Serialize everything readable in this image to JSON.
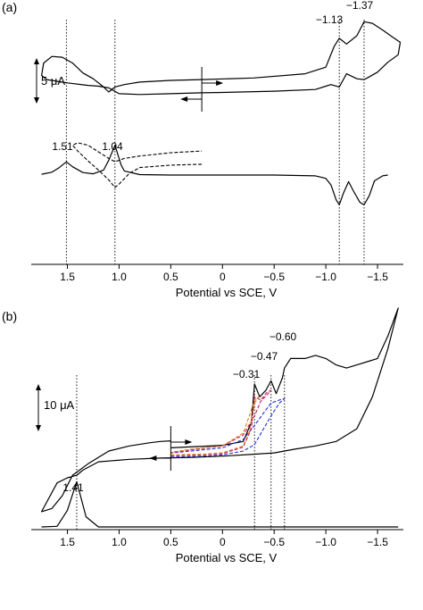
{
  "chart_data": [
    {
      "type": "line",
      "panel_label": "(a)",
      "xlabel": "Potential vs SCE, V",
      "xlim": [
        1.85,
        -1.75
      ],
      "x_reversed": true,
      "xticks": [
        1.5,
        1.0,
        0.5,
        0,
        -0.5,
        -1.0,
        -1.5
      ],
      "xtick_labels": [
        "1.5",
        "1.0",
        "0.5",
        "0",
        "−0.5",
        "−1.0",
        "−1.5"
      ],
      "scale_bar": {
        "label": "5 μA"
      },
      "marked_potentials": [
        1.51,
        1.04,
        -1.13,
        -1.37
      ],
      "annotations": [
        {
          "text": "1.51",
          "x": 1.51
        },
        {
          "text": "1.04",
          "x": 1.04
        },
        {
          "text": "−1.13",
          "x": -1.13
        },
        {
          "text": "−1.37",
          "x": -1.37
        }
      ],
      "series": [
        {
          "style": "solid",
          "trace": "cyclic voltammogram, wide scan",
          "x": [
            0.2,
            0.5,
            0.8,
            1.0,
            1.1,
            1.2,
            1.3,
            1.5,
            1.6,
            1.7,
            1.75,
            1.73,
            1.65,
            1.55,
            1.45,
            1.35,
            1.25,
            1.15,
            1.1,
            1.04,
            0.95,
            0.8,
            0.5,
            0.2,
            -0.3,
            -0.8,
            -1.0,
            -1.08,
            -1.13,
            -1.2,
            -1.3,
            -1.37,
            -1.45,
            -1.55,
            -1.65,
            -1.72,
            -1.7,
            -1.6,
            -1.5,
            -1.4,
            -1.37,
            -1.3,
            -1.2,
            -1.13,
            -1.05,
            -1.0,
            -0.9,
            -0.5,
            0.0,
            0.2
          ],
          "y": [
            -0.1,
            -0.2,
            -0.3,
            -0.2,
            0.5,
            0.7,
            0.8,
            1.1,
            1.3,
            1.5,
            2.0,
            3.5,
            4.3,
            4.2,
            3.5,
            2.3,
            1.6,
            0.6,
            0.0,
            0.6,
            0.9,
            1.2,
            1.4,
            1.5,
            1.7,
            2.2,
            3.0,
            5.5,
            6.5,
            5.8,
            6.8,
            8.5,
            8.3,
            7.5,
            6.6,
            6.0,
            4.5,
            3.6,
            2.4,
            1.7,
            1.5,
            1.6,
            2.2,
            0.6,
            0.9,
            0.7,
            0.3,
            0.1,
            -0.05,
            -0.1
          ]
        },
        {
          "style": "dashed",
          "trace": "cyclic voltammogram, first oxidation only",
          "x": [
            0.2,
            0.5,
            0.8,
            0.9,
            1.0,
            1.04,
            1.1,
            1.2,
            1.3,
            1.4,
            1.45,
            1.4,
            1.3,
            1.2,
            1.1,
            1.04,
            0.95,
            0.8,
            0.5,
            0.2
          ],
          "y": [
            -0.1,
            -0.2,
            -0.5,
            -1.2,
            -2.5,
            -2.9,
            -2.0,
            -0.8,
            0.3,
            1.5,
            2.2,
            2.5,
            2.2,
            1.4,
            0.6,
            0.2,
            0.6,
            0.9,
            1.3,
            1.5
          ]
        },
        {
          "style": "solid",
          "trace": "square-wave / differential pulse voltammogram",
          "x": [
            1.75,
            1.65,
            1.58,
            1.51,
            1.45,
            1.35,
            1.25,
            1.15,
            1.1,
            1.04,
            0.98,
            0.95,
            0.8,
            0.5,
            0.0,
            -0.5,
            -0.9,
            -1.0,
            -1.05,
            -1.1,
            -1.13,
            -1.17,
            -1.22,
            -1.27,
            -1.33,
            -1.37,
            -1.42,
            -1.47,
            -1.55,
            -1.6
          ],
          "y": [
            0.1,
            0.35,
            0.9,
            1.6,
            1.0,
            0.3,
            0.15,
            0.6,
            1.8,
            3.6,
            1.2,
            0.5,
            0.05,
            0.0,
            0.0,
            0.0,
            -0.1,
            -0.4,
            -1.2,
            -3.0,
            -3.6,
            -2.2,
            -0.8,
            -2.0,
            -3.3,
            -3.6,
            -2.5,
            -0.7,
            -0.1,
            0.0
          ]
        }
      ]
    },
    {
      "type": "line",
      "panel_label": "(b)",
      "xlabel": "Potential vs SCE, V",
      "xlim": [
        1.85,
        -1.75
      ],
      "x_reversed": true,
      "xticks": [
        1.5,
        1.0,
        0.5,
        0,
        -0.5,
        -1.0,
        -1.5
      ],
      "xtick_labels": [
        "1.5",
        "1.0",
        "0.5",
        "0",
        "−0.5",
        "−1.0",
        "−1.5"
      ],
      "scale_bar": {
        "label": "10 μA"
      },
      "marked_potentials": [
        1.41,
        -0.31,
        -0.47,
        -0.6
      ],
      "annotations": [
        {
          "text": "1.41",
          "x": 1.41
        },
        {
          "text": "−0.31",
          "x": -0.31
        },
        {
          "text": "−0.47",
          "x": -0.47
        },
        {
          "text": "−0.60",
          "x": -0.6
        }
      ],
      "series": [
        {
          "style": "solid",
          "color": "#000000",
          "trace": "cyclic voltammogram, wide scan",
          "x": [
            0.5,
            0.0,
            -0.2,
            -0.28,
            -0.31,
            -0.36,
            -0.42,
            -0.47,
            -0.52,
            -0.58,
            -0.6,
            -0.66,
            -0.8,
            -0.9,
            -1.0,
            -1.1,
            -1.2,
            -1.3,
            -1.4,
            -1.5,
            -1.6,
            -1.7,
            -1.6,
            -1.45,
            -1.3,
            -1.1,
            -0.9,
            -0.7,
            -0.5,
            -0.3,
            0.0,
            0.3,
            0.6,
            0.9,
            1.2,
            1.35,
            1.41,
            1.5,
            1.6,
            1.75,
            1.65,
            1.55,
            1.45,
            1.3,
            1.1,
            0.9,
            0.7,
            0.6,
            0.5
          ],
          "y": [
            0.5,
            0.9,
            1.5,
            4.5,
            10.5,
            8.5,
            9.5,
            11.0,
            9.0,
            11.5,
            13.0,
            14.5,
            14.5,
            15.0,
            14.5,
            13.5,
            13.0,
            13.5,
            14.0,
            14.5,
            18.0,
            26.5,
            16.0,
            8.5,
            3.5,
            1.5,
            0.8,
            0.3,
            -0.3,
            -0.5,
            -0.8,
            -1.0,
            -1.1,
            -1.3,
            -1.7,
            -3.0,
            -3.8,
            -4.2,
            -5.0,
            -9.5,
            -9.0,
            -7.0,
            -3.8,
            -2.0,
            0.0,
            0.8,
            1.3,
            1.5,
            1.6
          ]
        },
        {
          "style": "dashed",
          "color": "#1f2fd6",
          "trace": "scan reversed after third reduction",
          "x": [
            0.5,
            0.2,
            0.0,
            -0.2,
            -0.31,
            -0.38,
            -0.47,
            -0.55,
            -0.6,
            -0.55,
            -0.47,
            -0.4,
            -0.31,
            -0.2,
            0.0,
            0.3,
            0.5
          ],
          "y": [
            -1.0,
            -0.8,
            -0.6,
            0.0,
            1.0,
            3.0,
            5.5,
            7.5,
            8.2,
            8.0,
            7.5,
            6.0,
            4.0,
            1.8,
            0.5,
            0.0,
            -0.3
          ]
        },
        {
          "style": "dashed",
          "color": "#c0185a",
          "trace": "scan reversed after second reduction",
          "x": [
            0.5,
            0.2,
            0.0,
            -0.2,
            -0.28,
            -0.31,
            -0.37,
            -0.43,
            -0.47,
            -0.43,
            -0.37,
            -0.31,
            -0.2,
            0.0,
            0.3,
            0.5
          ],
          "y": [
            -0.8,
            -0.6,
            -0.4,
            0.6,
            3.5,
            8.5,
            8.0,
            9.2,
            9.5,
            8.8,
            7.8,
            5.5,
            2.5,
            0.8,
            0.2,
            -0.3
          ]
        },
        {
          "style": "dashed",
          "color": "#e07a1a",
          "trace": "scan reversed after first reduction",
          "x": [
            0.5,
            0.2,
            0.0,
            -0.2,
            -0.26,
            -0.31,
            -0.35,
            -0.31,
            -0.26,
            -0.2,
            0.0,
            0.3,
            0.5
          ],
          "y": [
            -0.6,
            -0.5,
            -0.3,
            0.8,
            3.0,
            7.5,
            8.5,
            8.0,
            5.5,
            2.8,
            0.8,
            0.3,
            -0.2
          ]
        },
        {
          "style": "solid",
          "color": "#000000",
          "trace": "square-wave / differential pulse voltammogram",
          "x": [
            1.75,
            1.6,
            1.5,
            1.41,
            1.32,
            1.2,
            1.0,
            0.5,
            0.0,
            -0.2,
            -0.28,
            -0.31,
            -0.36,
            -0.42,
            -0.47,
            -0.52,
            -0.6,
            -0.66,
            -0.8,
            -0.95,
            -1.0,
            -1.1,
            -1.2,
            -1.35,
            -1.45,
            -1.55,
            -1.6,
            -1.7
          ],
          "y": [
            0.3,
            1.5,
            4.0,
            8.5,
            3.0,
            1.2,
            0.4,
            0.0,
            -0.1,
            -0.5,
            -3.0,
            -6.5,
            -4.0,
            -2.8,
            -4.5,
            -2.8,
            -6.2,
            -4.0,
            -2.0,
            -3.0,
            -5.0,
            -3.5,
            -1.5,
            -2.5,
            -1.2,
            -0.5,
            -2.0,
            -0.8
          ]
        }
      ]
    }
  ]
}
